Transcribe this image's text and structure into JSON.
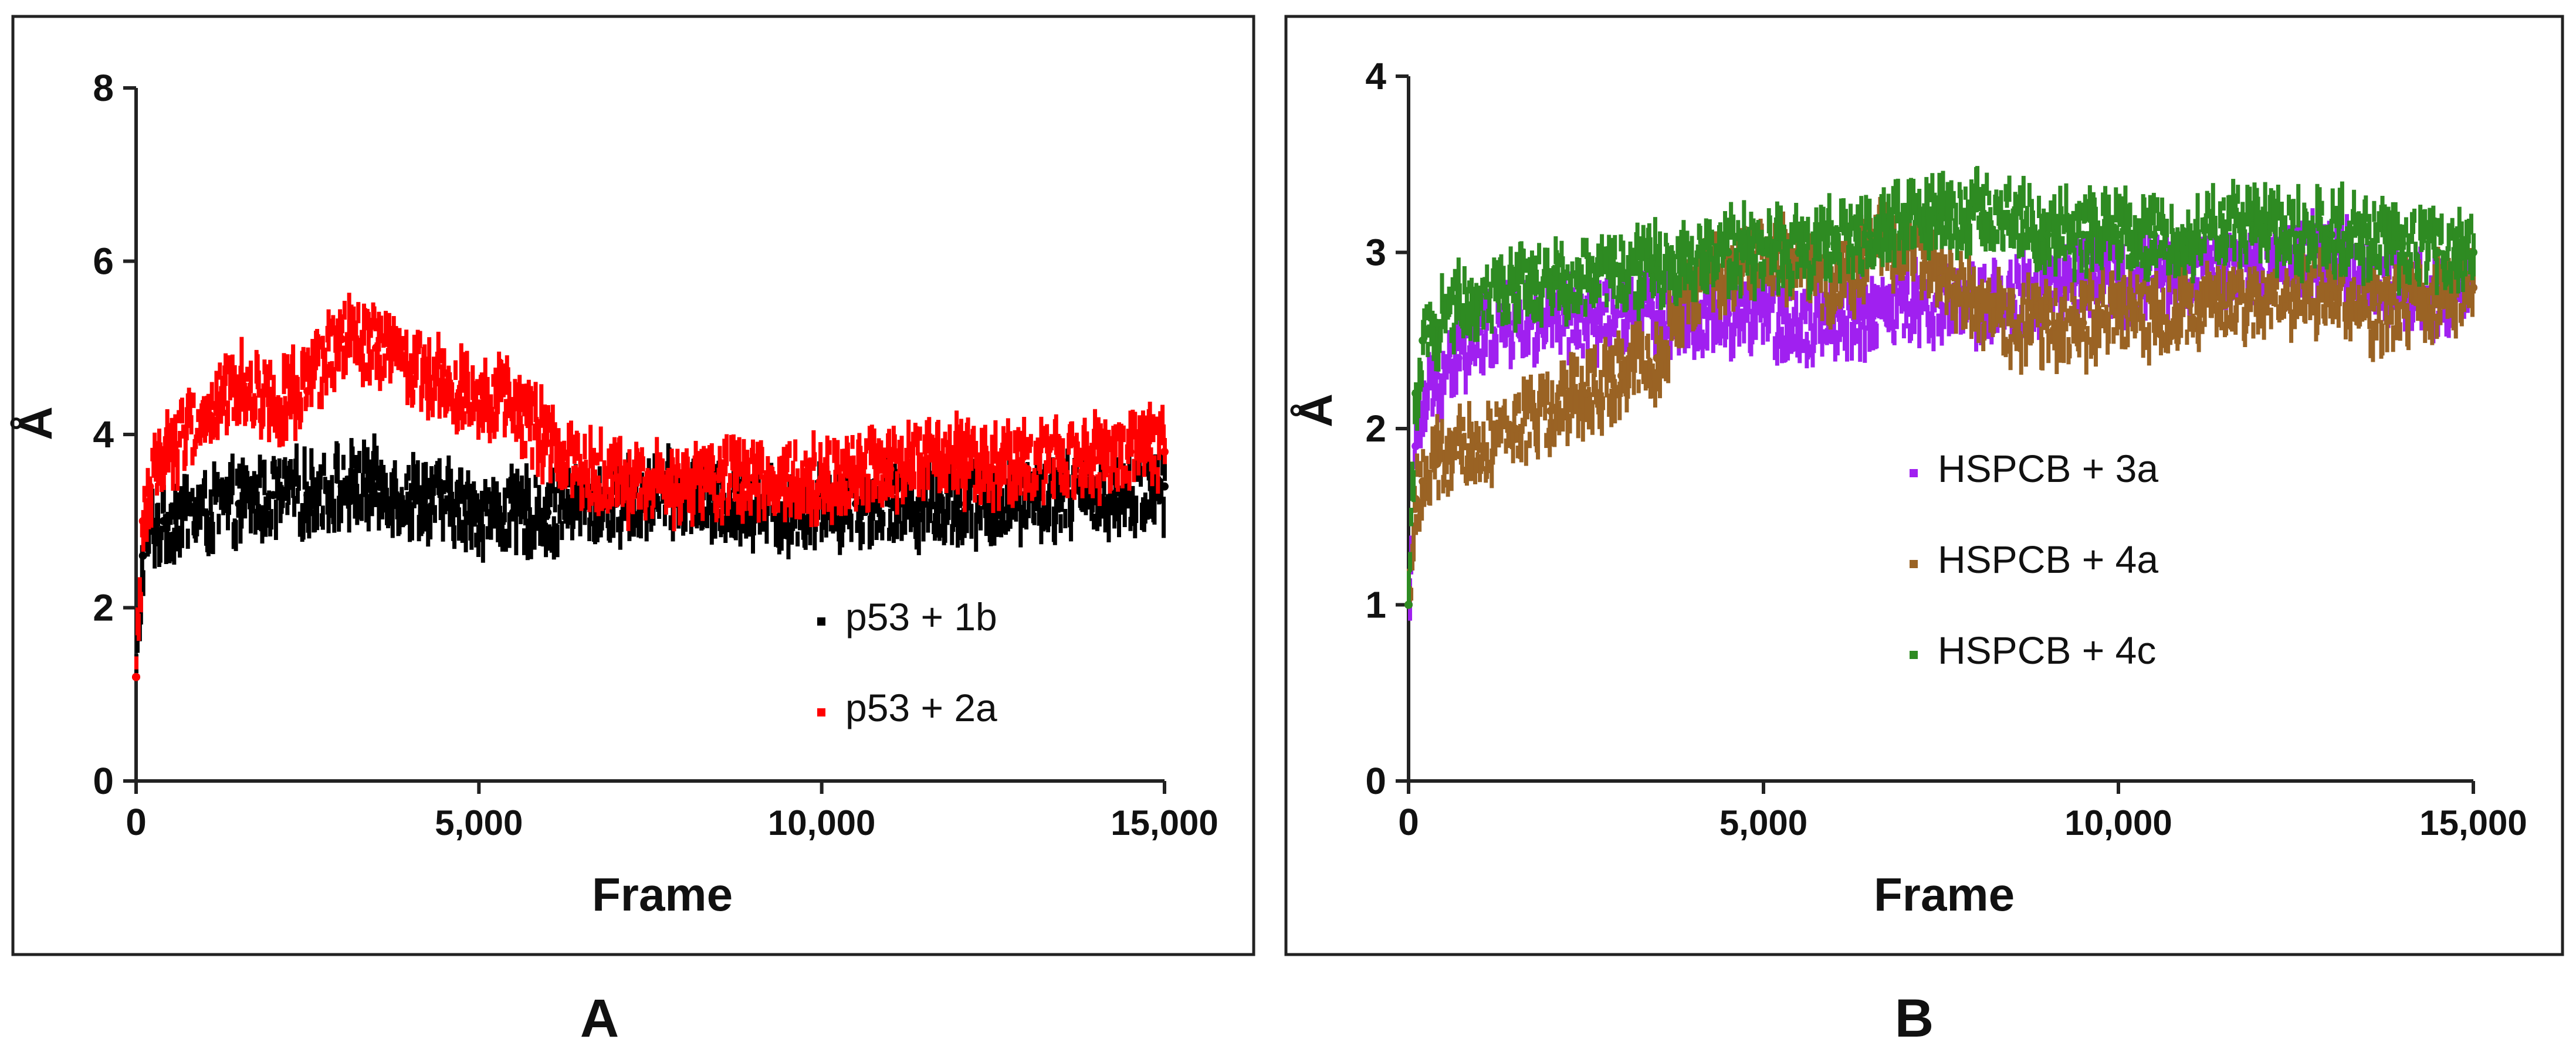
{
  "chart_data": [
    {
      "type": "line",
      "panel_label": "A",
      "xlabel": "Frame",
      "ylabel": "Å",
      "xlim": [
        0,
        15000
      ],
      "ylim": [
        0,
        8
      ],
      "x_ticks": [
        0,
        5000,
        10000,
        15000
      ],
      "x_tick_labels": [
        "0",
        "5,000",
        "10,000",
        "15,000"
      ],
      "y_ticks": [
        0,
        2,
        4,
        6,
        8
      ],
      "y_tick_labels": [
        "0",
        "2",
        "4",
        "6",
        "8"
      ],
      "grid": false,
      "legend_position": "bottom-right",
      "series": [
        {
          "name": "p53 + 1b",
          "color": "#000000",
          "x": [
            0,
            100,
            200,
            400,
            700,
            1000,
            1500,
            2000,
            2500,
            3000,
            3500,
            4000,
            4500,
            5000,
            5500,
            6000,
            6500,
            7000,
            7500,
            8000,
            8500,
            9000,
            9500,
            10000,
            10500,
            11000,
            11500,
            12000,
            12500,
            13000,
            13500,
            14000,
            14500,
            15000
          ],
          "y": [
            1.2,
            2.6,
            2.9,
            3.0,
            3.1,
            3.1,
            3.2,
            3.3,
            3.3,
            3.4,
            3.4,
            3.3,
            3.2,
            3.1,
            3.1,
            3.1,
            3.2,
            3.2,
            3.3,
            3.3,
            3.2,
            3.2,
            3.1,
            3.2,
            3.2,
            3.2,
            3.2,
            3.2,
            3.2,
            3.3,
            3.3,
            3.3,
            3.3,
            3.4
          ]
        },
        {
          "name": "p53 + 2a",
          "color": "#ff0000",
          "x": [
            0,
            100,
            200,
            400,
            700,
            1000,
            1500,
            2000,
            2500,
            3000,
            3500,
            4000,
            4500,
            5000,
            5500,
            6000,
            6500,
            7000,
            7500,
            8000,
            8500,
            9000,
            9500,
            10000,
            10500,
            11000,
            11500,
            12000,
            12500,
            13000,
            13500,
            14000,
            14500,
            15000
          ],
          "y": [
            1.2,
            3.0,
            3.4,
            3.8,
            4.0,
            4.2,
            4.6,
            4.4,
            4.5,
            5.1,
            5.0,
            4.8,
            4.6,
            4.5,
            4.3,
            3.9,
            3.6,
            3.5,
            3.4,
            3.4,
            3.5,
            3.5,
            3.5,
            3.5,
            3.6,
            3.6,
            3.7,
            3.7,
            3.6,
            3.6,
            3.7,
            3.7,
            3.8,
            3.8
          ]
        }
      ]
    },
    {
      "type": "line",
      "panel_label": "B",
      "xlabel": "Frame",
      "ylabel": "Å",
      "xlim": [
        0,
        15000
      ],
      "ylim": [
        0,
        4
      ],
      "x_ticks": [
        0,
        5000,
        10000,
        15000
      ],
      "x_tick_labels": [
        "0",
        "5,000",
        "10,000",
        "15,000"
      ],
      "y_ticks": [
        0,
        1,
        2,
        3,
        4
      ],
      "y_tick_labels": [
        "0",
        "1",
        "2",
        "3",
        "4"
      ],
      "grid": false,
      "legend_position": "center-right",
      "series": [
        {
          "name": "HSPCB + 3a",
          "color": "#a020f0",
          "x": [
            0,
            100,
            200,
            400,
            700,
            1000,
            1500,
            2000,
            2500,
            3000,
            3500,
            4000,
            4500,
            5000,
            5500,
            6000,
            6500,
            7000,
            7500,
            8000,
            8500,
            9000,
            9500,
            10000,
            10500,
            11000,
            11500,
            12000,
            12500,
            13000,
            13500,
            14000,
            14500,
            15000
          ],
          "y": [
            1.0,
            1.9,
            2.1,
            2.3,
            2.4,
            2.55,
            2.6,
            2.6,
            2.6,
            2.65,
            2.65,
            2.65,
            2.65,
            2.65,
            2.6,
            2.65,
            2.65,
            2.7,
            2.7,
            2.7,
            2.75,
            2.8,
            2.85,
            2.85,
            2.85,
            2.9,
            2.9,
            2.9,
            2.95,
            3.0,
            2.85,
            2.8,
            2.75,
            2.8
          ]
        },
        {
          "name": "HSPCB + 4a",
          "color": "#9a6324",
          "x": [
            0,
            100,
            200,
            400,
            700,
            1000,
            1500,
            2000,
            2500,
            3000,
            3500,
            4000,
            4500,
            5000,
            5500,
            6000,
            6500,
            7000,
            7500,
            8000,
            8500,
            9000,
            9500,
            10000,
            10500,
            11000,
            11500,
            12000,
            12500,
            13000,
            13500,
            14000,
            14500,
            15000
          ],
          "y": [
            1.0,
            1.6,
            1.7,
            1.8,
            1.85,
            1.9,
            2.0,
            2.1,
            2.2,
            2.3,
            2.4,
            2.8,
            2.9,
            3.0,
            2.9,
            2.8,
            3.0,
            3.1,
            2.9,
            2.7,
            2.6,
            2.6,
            2.6,
            2.65,
            2.65,
            2.7,
            2.7,
            2.7,
            2.75,
            2.8,
            2.65,
            2.7,
            2.75,
            2.8
          ]
        },
        {
          "name": "HSPCB + 4c",
          "color": "#2e8b22",
          "x": [
            0,
            100,
            200,
            400,
            700,
            1000,
            1500,
            2000,
            2500,
            3000,
            3500,
            4000,
            4500,
            5000,
            5500,
            6000,
            6500,
            7000,
            7500,
            8000,
            8500,
            9000,
            9500,
            10000,
            10500,
            11000,
            11500,
            12000,
            12500,
            13000,
            13500,
            14000,
            14500,
            15000
          ],
          "y": [
            1.0,
            2.2,
            2.5,
            2.6,
            2.7,
            2.75,
            2.8,
            2.85,
            2.85,
            2.9,
            2.9,
            2.95,
            3.0,
            3.0,
            3.0,
            3.05,
            3.1,
            3.2,
            3.2,
            3.25,
            3.2,
            3.1,
            3.1,
            3.1,
            3.1,
            3.1,
            3.15,
            3.15,
            3.1,
            3.1,
            3.1,
            3.05,
            3.0,
            3.0
          ]
        }
      ]
    }
  ]
}
